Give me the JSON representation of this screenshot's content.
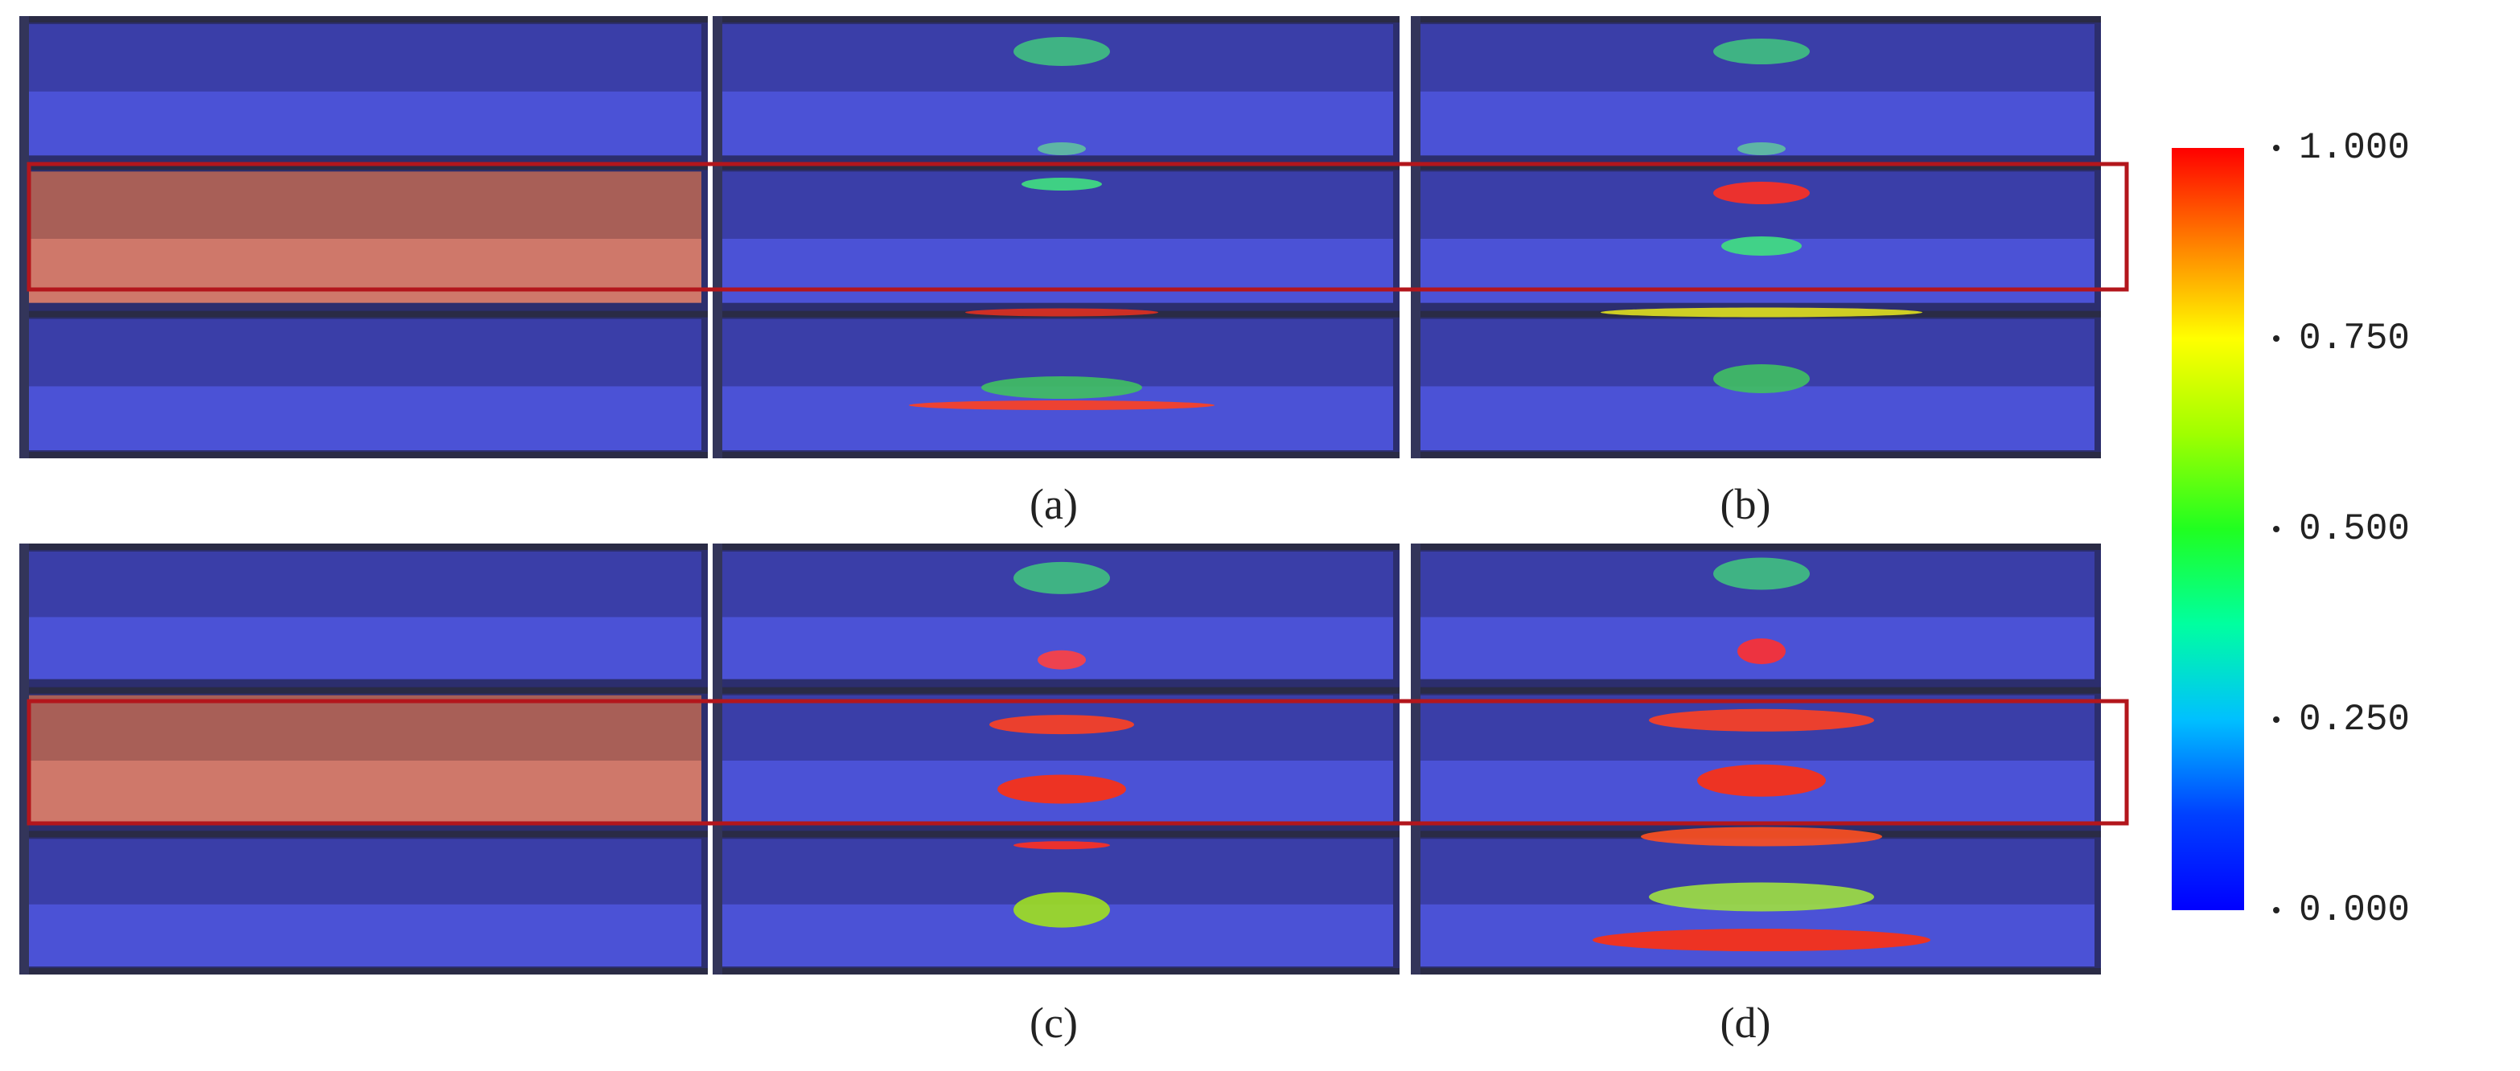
{
  "panels": [
    "(a)",
    "(b)",
    "(c)",
    "(d)"
  ],
  "colorbar": {
    "ticks": [
      {
        "value": 1,
        "label": "1.000"
      },
      {
        "value": 0.75,
        "label": "0.750"
      },
      {
        "value": 0.5,
        "label": "0.500"
      },
      {
        "value": 0.25,
        "label": "0.250"
      },
      {
        "value": 0,
        "label": "0.000"
      }
    ],
    "range": [
      0,
      1
    ]
  }
}
